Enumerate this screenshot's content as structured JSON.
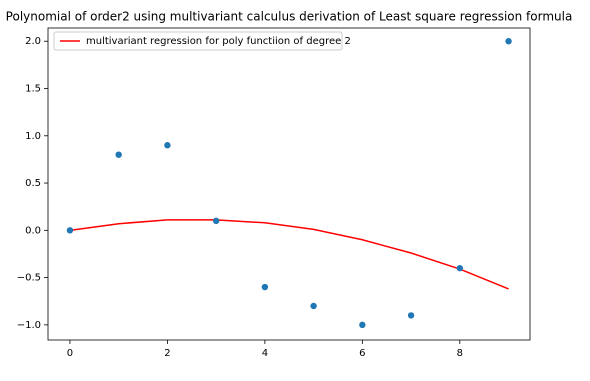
{
  "chart_data": {
    "type": "scatter",
    "title": "Polynomial of order2 using multivariant calculus derivation of Least square regression formula",
    "series": [
      {
        "name": "multivariant regression for poly functiion of degree 2",
        "type": "line",
        "color": "#ff0000",
        "x": [
          0,
          1,
          2,
          3,
          4,
          5,
          6,
          7,
          8,
          9
        ],
        "values": [
          0,
          0.07,
          0.11,
          0.11,
          0.08,
          0.01,
          -0.1,
          -0.24,
          -0.41,
          -0.62
        ]
      },
      {
        "type": "scatter",
        "color": "#1f77b4",
        "x": [
          0,
          1,
          2,
          3,
          4,
          5,
          6,
          7,
          8,
          9
        ],
        "values": [
          0,
          0.8,
          0.9,
          0.1,
          -0.6,
          -0.8,
          -1.0,
          -0.9,
          -0.4,
          2.0
        ]
      }
    ],
    "xlim": [
      -0.45,
      9.44
    ],
    "ylim": [
      -1.16,
      2.14
    ],
    "xticks": [
      0,
      2,
      4,
      6,
      8
    ],
    "yticks": [
      {
        "value": -1,
        "label": "−1.0"
      },
      {
        "value": -0.5,
        "label": "−0.5"
      },
      {
        "value": 0,
        "label": "0.0"
      },
      0.5,
      {
        "value": 1,
        "label": "1.0"
      },
      1.5,
      {
        "value": 2,
        "label": "2.0"
      }
    ],
    "legend": "upper left"
  }
}
